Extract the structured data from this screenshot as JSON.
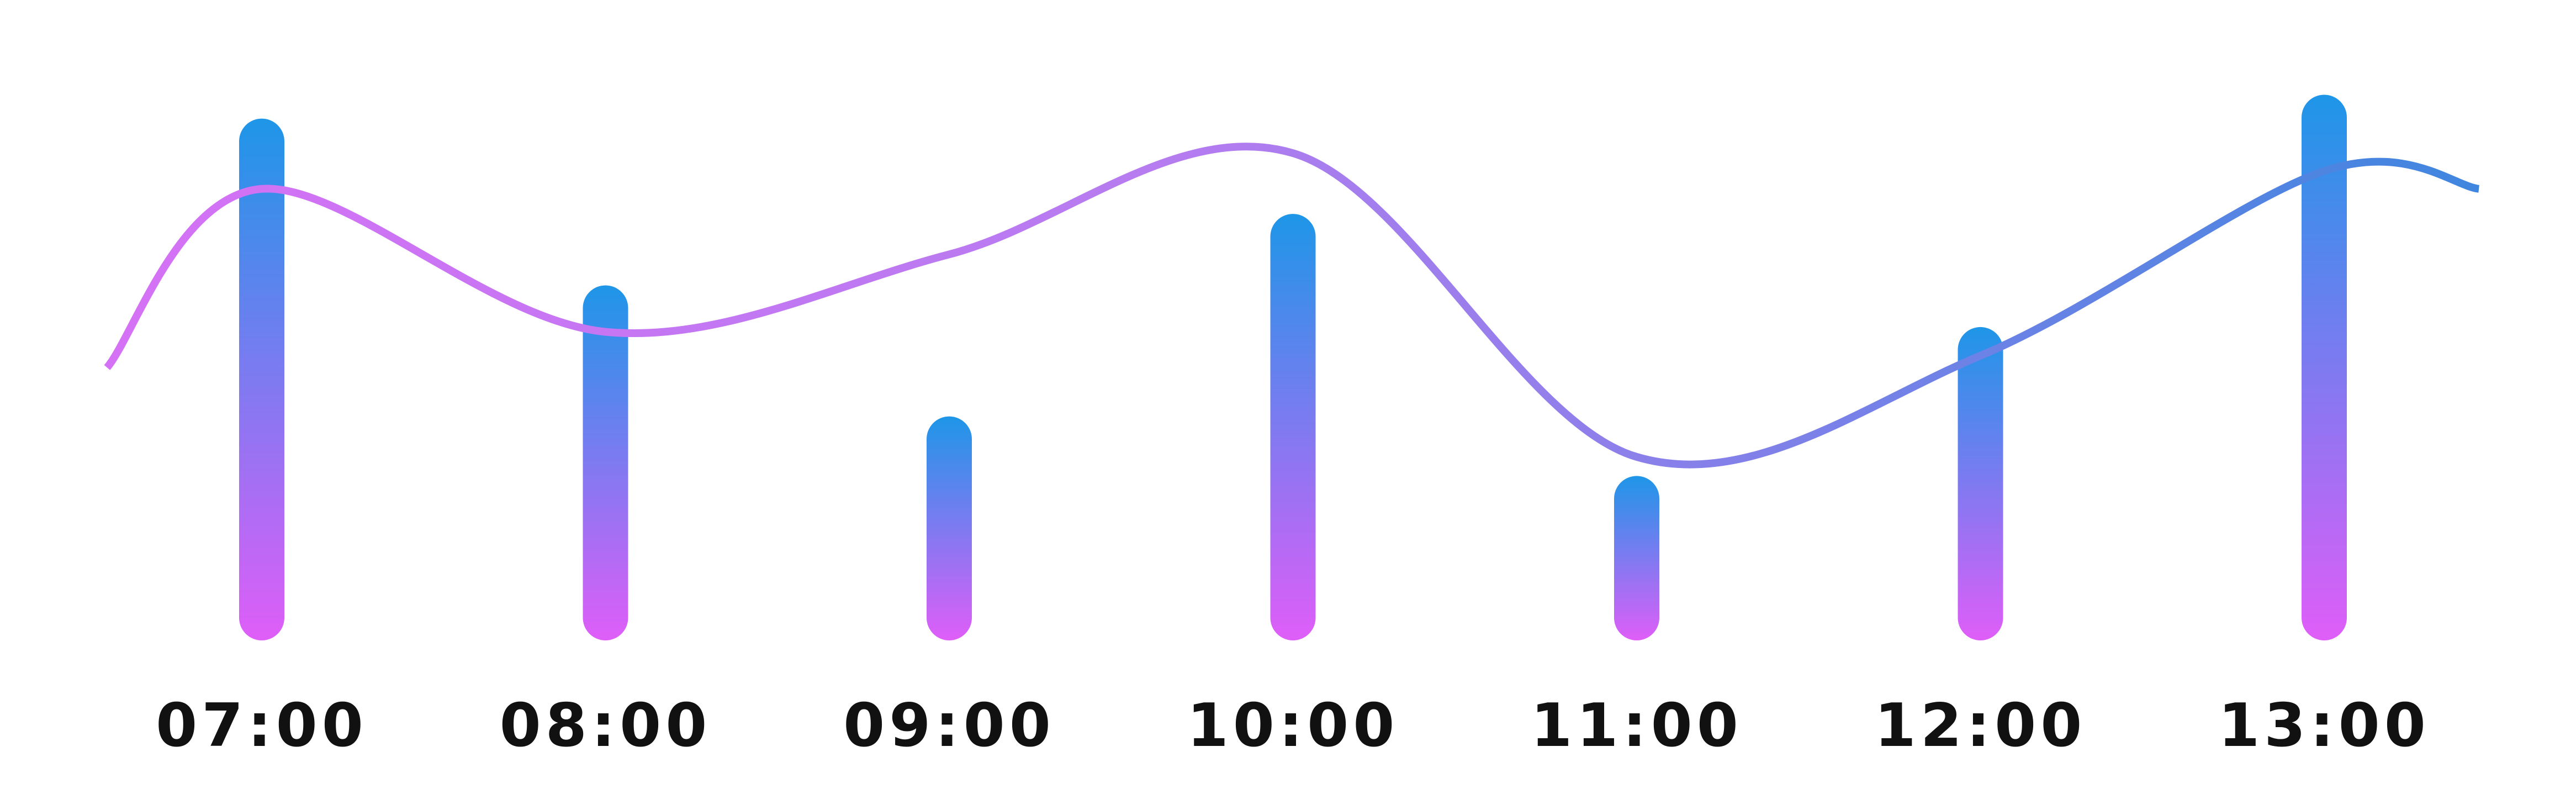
{
  "chart_data": {
    "type": "bar",
    "categories": [
      "07:00",
      "08:00",
      "09:00",
      "10:00",
      "11:00",
      "12:00",
      "13:00"
    ],
    "series": [
      {
        "type": "bar",
        "values": [
          80,
          52,
          30,
          64,
          20,
          45,
          84
        ]
      },
      {
        "type": "line",
        "x": [
          6.55,
          7.0,
          8.0,
          9.0,
          10.0,
          11.0,
          12.0,
          13.0,
          13.45
        ],
        "values": [
          42,
          72,
          48,
          61,
          78,
          27,
          44,
          75,
          72
        ]
      }
    ],
    "ylim": [
      0,
      100
    ],
    "title": "",
    "xlabel": "",
    "ylabel": "",
    "grid": false,
    "colors": {
      "bar_top": "#1e96e8",
      "bar_bottom": "#df5ef8",
      "line_start": "#d571f5",
      "line_end": "#3f86df",
      "label": "#111111",
      "background": "#ffffff"
    }
  }
}
